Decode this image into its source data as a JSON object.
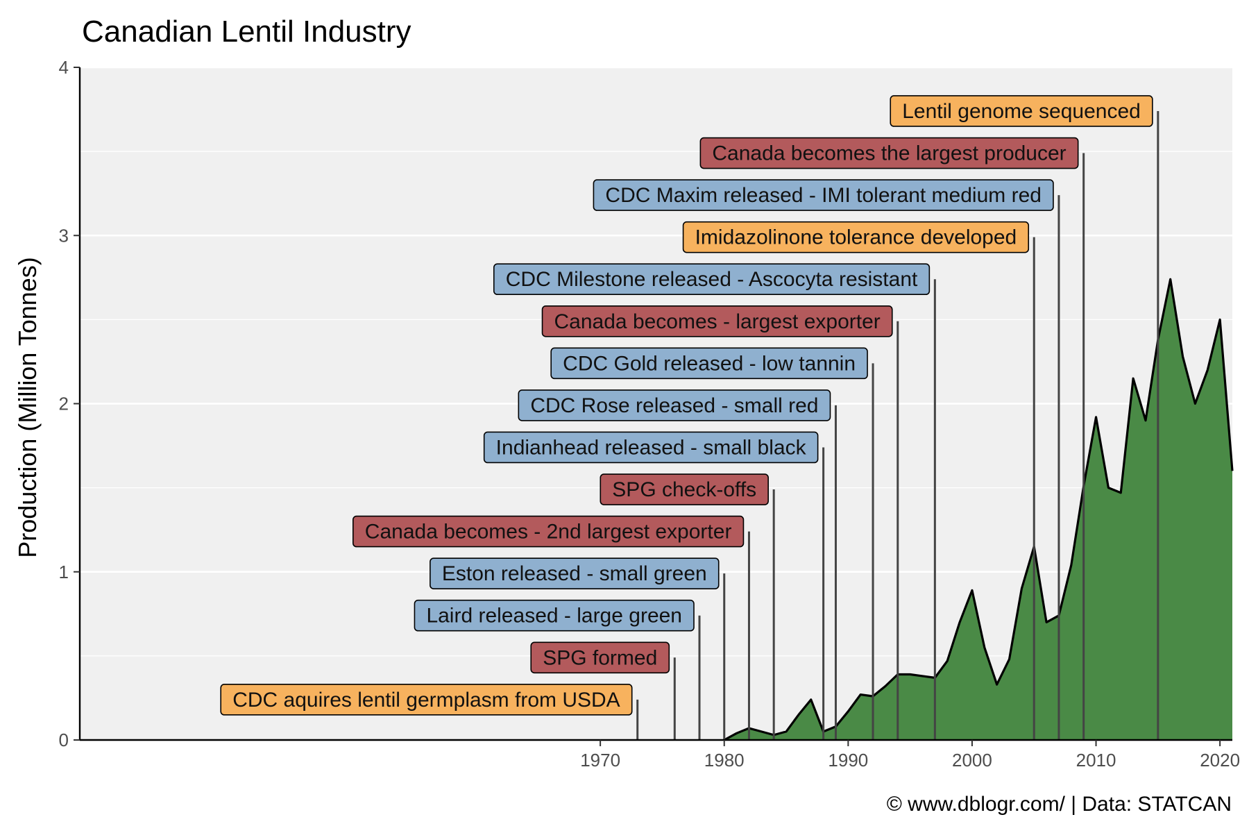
{
  "chart_data": {
    "type": "area",
    "title": "Canadian Lentil Industry",
    "ylabel": "Production (Million Tonnes)",
    "xlabel": "",
    "caption": "© www.dblogr.com/ | Data: STATCAN",
    "xlim": [
      1928,
      2021
    ],
    "ylim": [
      0,
      4
    ],
    "x_ticks": [
      1970,
      1980,
      1990,
      2000,
      2010,
      2020
    ],
    "y_ticks": [
      0,
      1,
      2,
      3,
      4
    ],
    "grid": true,
    "background": "#f0f0f0",
    "colors": {
      "area_fill": "#4a8a46",
      "area_line": "#000000",
      "breeding": "#8fb0cf",
      "industry": "#b35a5c",
      "research": "#f7b25e",
      "leader_line": "#444444"
    },
    "series": [
      {
        "x": [
          1980,
          1981,
          1982,
          1983,
          1984,
          1985,
          1986,
          1987,
          1988,
          1989,
          1990,
          1991,
          1992,
          1993,
          1994,
          1995,
          1996,
          1997,
          1998,
          1999,
          2000,
          2001,
          2002,
          2003,
          2004,
          2005,
          2006,
          2007,
          2008,
          2009,
          2010,
          2011,
          2012,
          2013,
          2014,
          2015,
          2016,
          2017,
          2018,
          2019,
          2020,
          2021
        ],
        "values": [
          0.0,
          0.04,
          0.07,
          0.05,
          0.03,
          0.05,
          0.15,
          0.24,
          0.05,
          0.08,
          0.17,
          0.27,
          0.26,
          0.32,
          0.39,
          0.39,
          0.38,
          0.37,
          0.47,
          0.7,
          0.89,
          0.55,
          0.33,
          0.48,
          0.9,
          1.15,
          0.7,
          0.74,
          1.04,
          1.51,
          1.92,
          1.5,
          1.47,
          2.15,
          1.9,
          2.38,
          2.74,
          2.28,
          2.0,
          2.2,
          2.5,
          1.6
        ]
      }
    ],
    "events": [
      {
        "year": 1973,
        "label": "CDC aquires lentil germplasm from USDA",
        "category": "research",
        "y": 0.24
      },
      {
        "year": 1976,
        "label": "SPG formed",
        "category": "industry",
        "y": 0.49
      },
      {
        "year": 1978,
        "label": "Laird released - large green",
        "category": "breeding",
        "y": 0.74
      },
      {
        "year": 1980,
        "label": "Eston released - small green",
        "category": "breeding",
        "y": 0.99
      },
      {
        "year": 1982,
        "label": "Canada becomes - 2nd largest exporter",
        "category": "industry",
        "y": 1.24
      },
      {
        "year": 1984,
        "label": "SPG check-offs",
        "category": "industry",
        "y": 1.49
      },
      {
        "year": 1988,
        "label": "Indianhead released - small black",
        "category": "breeding",
        "y": 1.74
      },
      {
        "year": 1989,
        "label": "CDC Rose released - small red",
        "category": "breeding",
        "y": 1.99
      },
      {
        "year": 1992,
        "label": "CDC Gold released - low tannin",
        "category": "breeding",
        "y": 2.24
      },
      {
        "year": 1994,
        "label": "Canada becomes - largest exporter",
        "category": "industry",
        "y": 2.49
      },
      {
        "year": 1997,
        "label": "CDC Milestone released - Ascocyta resistant",
        "category": "breeding",
        "y": 2.74
      },
      {
        "year": 2005,
        "label": "Imidazolinone tolerance developed",
        "category": "research",
        "y": 2.99
      },
      {
        "year": 2007,
        "label": "CDC Maxim released - IMI tolerant medium red",
        "category": "breeding",
        "y": 3.24
      },
      {
        "year": 2009,
        "label": "Canada becomes the largest producer",
        "category": "industry",
        "y": 3.49
      },
      {
        "year": 2015,
        "label": "Lentil genome sequenced",
        "category": "research",
        "y": 3.74
      }
    ]
  }
}
